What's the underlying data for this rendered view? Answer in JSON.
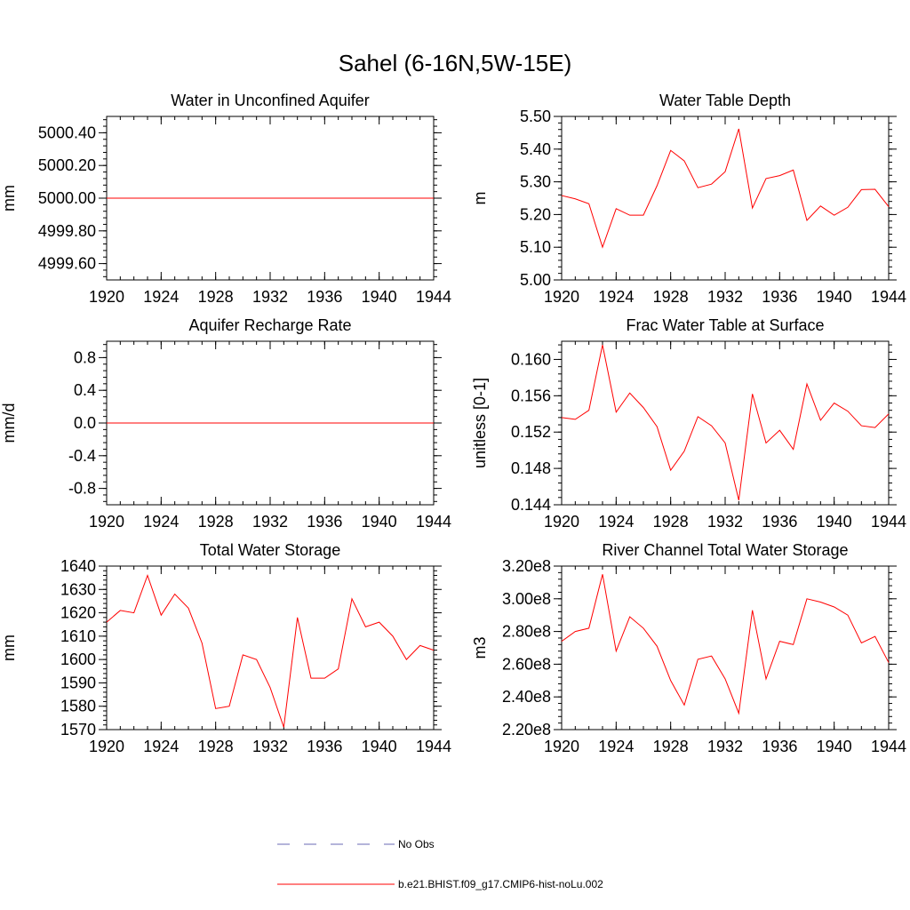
{
  "title": "Sahel (6-16N,5W-15E)",
  "legend": {
    "obs_label": "No Obs",
    "obs_color": "#6a6ab4",
    "model_label": "b.e21.BHIST.f09_g17.CMIP6-hist-noLu.002",
    "model_color": "#ff0000"
  },
  "chart_data": [
    {
      "type": "line",
      "title": "Water in Unconfined Aquifer",
      "ylabel": "mm",
      "xlim": [
        1920,
        1944
      ],
      "ylim": [
        4999.5,
        5000.5
      ],
      "xticks": [
        "1920",
        "1924",
        "1928",
        "1932",
        "1936",
        "1940",
        "1944"
      ],
      "yticks": [
        "4999.60",
        "4999.80",
        "5000.00",
        "5000.20",
        "5000.40"
      ],
      "x": [
        1920,
        1921,
        1922,
        1923,
        1924,
        1925,
        1926,
        1927,
        1928,
        1929,
        1930,
        1931,
        1932,
        1933,
        1934,
        1935,
        1936,
        1937,
        1938,
        1939,
        1940,
        1941,
        1942,
        1943,
        1944
      ],
      "series": [
        {
          "values": [
            5000,
            5000,
            5000,
            5000,
            5000,
            5000,
            5000,
            5000,
            5000,
            5000,
            5000,
            5000,
            5000,
            5000,
            5000,
            5000,
            5000,
            5000,
            5000,
            5000,
            5000,
            5000,
            5000,
            5000,
            5000
          ]
        }
      ]
    },
    {
      "type": "line",
      "title": "Water Table Depth",
      "ylabel": "m",
      "xlim": [
        1920,
        1944
      ],
      "ylim": [
        5.0,
        5.5
      ],
      "xticks": [
        "1920",
        "1924",
        "1928",
        "1932",
        "1936",
        "1940",
        "1944"
      ],
      "yticks": [
        "5.00",
        "5.10",
        "5.20",
        "5.30",
        "5.40",
        "5.50"
      ],
      "x": [
        1920,
        1921,
        1922,
        1923,
        1924,
        1925,
        1926,
        1927,
        1928,
        1929,
        1930,
        1931,
        1932,
        1933,
        1934,
        1935,
        1936,
        1937,
        1938,
        1939,
        1940,
        1941,
        1942,
        1943,
        1944
      ],
      "series": [
        {
          "values": [
            5.258,
            5.248,
            5.233,
            5.1,
            5.218,
            5.198,
            5.198,
            5.288,
            5.396,
            5.364,
            5.282,
            5.293,
            5.331,
            5.462,
            5.22,
            5.31,
            5.319,
            5.336,
            5.182,
            5.226,
            5.198,
            5.222,
            5.276,
            5.277,
            5.224
          ]
        }
      ]
    },
    {
      "type": "line",
      "title": "Aquifer Recharge Rate",
      "ylabel": "mm/d",
      "xlim": [
        1920,
        1944
      ],
      "ylim": [
        -1.0,
        1.0
      ],
      "xticks": [
        "1920",
        "1924",
        "1928",
        "1932",
        "1936",
        "1940",
        "1944"
      ],
      "yticks": [
        "-0.8",
        "-0.4",
        "0.0",
        "0.4",
        "0.8"
      ],
      "x": [
        1920,
        1921,
        1922,
        1923,
        1924,
        1925,
        1926,
        1927,
        1928,
        1929,
        1930,
        1931,
        1932,
        1933,
        1934,
        1935,
        1936,
        1937,
        1938,
        1939,
        1940,
        1941,
        1942,
        1943,
        1944
      ],
      "series": [
        {
          "values": [
            0,
            0,
            0,
            0,
            0,
            0,
            0,
            0,
            0,
            0,
            0,
            0,
            0,
            0,
            0,
            0,
            0,
            0,
            0,
            0,
            0,
            0,
            0,
            0,
            0
          ]
        }
      ]
    },
    {
      "type": "line",
      "title": "Frac Water Table at Surface",
      "ylabel": "unitless [0-1]",
      "xlim": [
        1920,
        1944
      ],
      "ylim": [
        0.144,
        0.162
      ],
      "xticks": [
        "1920",
        "1924",
        "1928",
        "1932",
        "1936",
        "1940",
        "1944"
      ],
      "yticks": [
        "0.144",
        "0.148",
        "0.152",
        "0.156",
        "0.160"
      ],
      "x": [
        1920,
        1921,
        1922,
        1923,
        1924,
        1925,
        1926,
        1927,
        1928,
        1929,
        1930,
        1931,
        1932,
        1933,
        1934,
        1935,
        1936,
        1937,
        1938,
        1939,
        1940,
        1941,
        1942,
        1943,
        1944
      ],
      "series": [
        {
          "values": [
            0.1536,
            0.1534,
            0.1544,
            0.1616,
            0.1542,
            0.1563,
            0.1547,
            0.1526,
            0.1478,
            0.1499,
            0.1537,
            0.1527,
            0.1508,
            0.1445,
            0.1562,
            0.1508,
            0.1522,
            0.1501,
            0.1573,
            0.1533,
            0.1552,
            0.1543,
            0.1527,
            0.1525,
            0.154
          ]
        }
      ]
    },
    {
      "type": "line",
      "title": "Total Water Storage",
      "ylabel": "mm",
      "xlim": [
        1920,
        1944
      ],
      "ylim": [
        1570,
        1640
      ],
      "xticks": [
        "1920",
        "1924",
        "1928",
        "1932",
        "1936",
        "1940",
        "1944"
      ],
      "yticks": [
        "1570",
        "1580",
        "1590",
        "1600",
        "1610",
        "1620",
        "1630",
        "1640"
      ],
      "x": [
        1920,
        1921,
        1922,
        1923,
        1924,
        1925,
        1926,
        1927,
        1928,
        1929,
        1930,
        1931,
        1932,
        1933,
        1934,
        1935,
        1936,
        1937,
        1938,
        1939,
        1940,
        1941,
        1942,
        1943,
        1944
      ],
      "series": [
        {
          "values": [
            1616,
            1621,
            1620,
            1636,
            1619,
            1628,
            1622,
            1607,
            1579,
            1580,
            1602,
            1600,
            1588,
            1571,
            1618,
            1592,
            1592,
            1596,
            1626,
            1614,
            1616,
            1610,
            1600,
            1606,
            1604
          ]
        }
      ]
    },
    {
      "type": "line",
      "title": "River Channel Total Water Storage",
      "ylabel": "m3",
      "xlim": [
        1920,
        1944
      ],
      "ylim": [
        220000000,
        320000000
      ],
      "xticks": [
        "1920",
        "1924",
        "1928",
        "1932",
        "1936",
        "1940",
        "1944"
      ],
      "yticks": [
        "2.20e8",
        "2.40e8",
        "2.60e8",
        "2.80e8",
        "3.00e8",
        "3.20e8"
      ],
      "x": [
        1920,
        1921,
        1922,
        1923,
        1924,
        1925,
        1926,
        1927,
        1928,
        1929,
        1930,
        1931,
        1932,
        1933,
        1934,
        1935,
        1936,
        1937,
        1938,
        1939,
        1940,
        1941,
        1942,
        1943,
        1944
      ],
      "series": [
        {
          "values": [
            274000000,
            280000000,
            282000000,
            315000000,
            268000000,
            289000000,
            282000000,
            271000000,
            250000000,
            235000000,
            263000000,
            265000000,
            251000000,
            230000000,
            293000000,
            251000000,
            274000000,
            272000000,
            300000000,
            298000000,
            295000000,
            290000000,
            273000000,
            277000000,
            261000000
          ]
        }
      ]
    }
  ]
}
